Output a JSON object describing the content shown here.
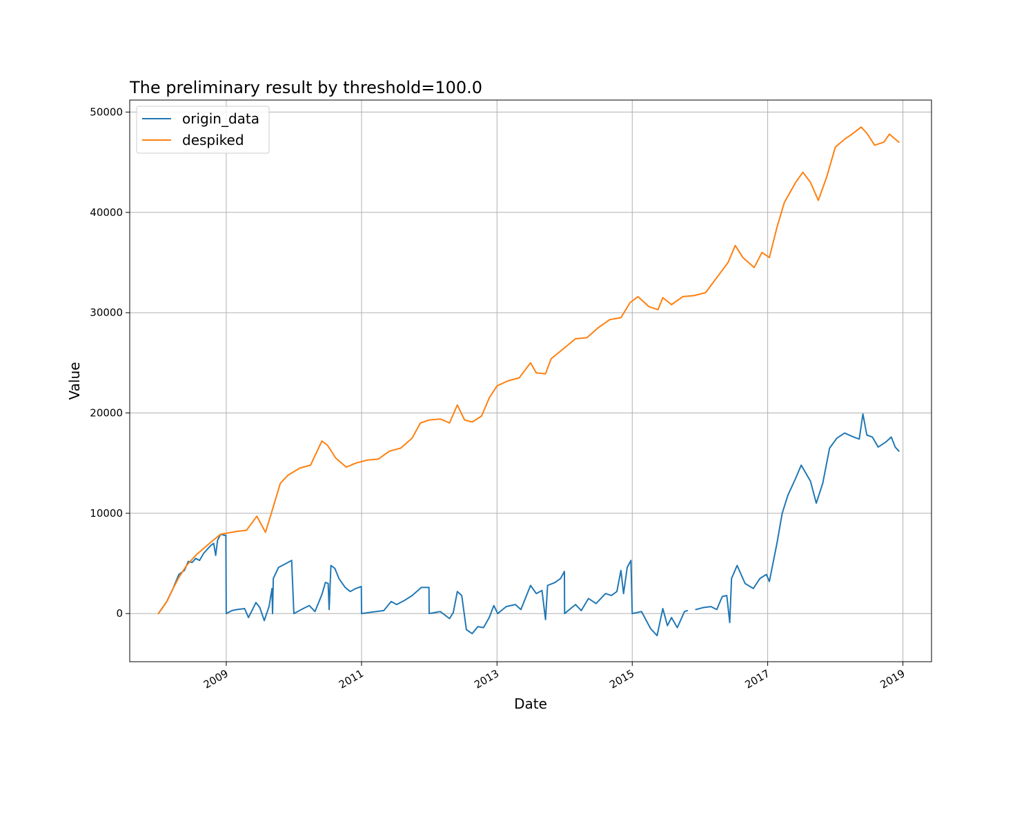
{
  "chart_data": {
    "type": "line",
    "title": "The preliminary result by threshold=100.0",
    "xlabel": "Date",
    "ylabel": "Value",
    "xlim": [
      "2007-07-30",
      "2019-06-04"
    ],
    "ylim": [
      -4800,
      51200
    ],
    "x_ticks": [
      "2009",
      "2011",
      "2013",
      "2015",
      "2017",
      "2019"
    ],
    "y_ticks": [
      0,
      10000,
      20000,
      30000,
      40000,
      50000
    ],
    "grid": true,
    "legend_position": "upper left",
    "series": [
      {
        "name": "origin_data",
        "color": "#1f77b4",
        "segments": [
          [
            [
              "2008-01-01",
              0
            ],
            [
              "2008-02-15",
              1200
            ],
            [
              "2008-03-20",
              2500
            ],
            [
              "2008-04-20",
              3900
            ],
            [
              "2008-05-20",
              4300
            ],
            [
              "2008-06-10",
              5200
            ],
            [
              "2008-07-01",
              5100
            ],
            [
              "2008-07-20",
              5500
            ],
            [
              "2008-08-10",
              5300
            ],
            [
              "2008-09-01",
              6000
            ],
            [
              "2008-09-20",
              6400
            ],
            [
              "2008-10-10",
              6800
            ],
            [
              "2008-10-25",
              7000
            ],
            [
              "2008-11-05",
              5800
            ],
            [
              "2008-11-15",
              7300
            ],
            [
              "2008-12-01",
              7900
            ],
            [
              "2008-12-25",
              7800
            ],
            [
              "2008-12-30",
              7800
            ],
            [
              "2009-01-01",
              0
            ],
            [
              "2009-02-01",
              300
            ],
            [
              "2009-03-01",
              400
            ],
            [
              "2009-04-10",
              500
            ],
            [
              "2009-05-01",
              -400
            ],
            [
              "2009-05-20",
              300
            ],
            [
              "2009-06-10",
              1100
            ],
            [
              "2009-07-01",
              600
            ],
            [
              "2009-07-25",
              -700
            ],
            [
              "2009-08-20",
              700
            ],
            [
              "2009-09-05",
              2500
            ],
            [
              "2009-09-08",
              0
            ],
            [
              "2009-09-12",
              3500
            ],
            [
              "2009-10-10",
              4600
            ],
            [
              "2009-11-10",
              4900
            ],
            [
              "2009-12-20",
              5300
            ],
            [
              "2010-01-01",
              0
            ],
            [
              "2010-02-20",
              500
            ],
            [
              "2010-03-25",
              800
            ],
            [
              "2010-04-25",
              200
            ],
            [
              "2010-06-01",
              1900
            ],
            [
              "2010-06-20",
              3100
            ],
            [
              "2010-07-05",
              3000
            ],
            [
              "2010-07-10",
              400
            ],
            [
              "2010-07-20",
              4800
            ],
            [
              "2010-08-10",
              4500
            ],
            [
              "2010-09-01",
              3500
            ],
            [
              "2010-10-05",
              2600
            ],
            [
              "2010-11-01",
              2200
            ],
            [
              "2010-12-01",
              2500
            ],
            [
              "2010-12-31",
              2700
            ],
            [
              "2011-01-01",
              0
            ],
            [
              "2011-03-01",
              150
            ],
            [
              "2011-05-01",
              300
            ],
            [
              "2011-06-10",
              1200
            ],
            [
              "2011-07-10",
              900
            ],
            [
              "2011-08-20",
              1300
            ],
            [
              "2011-10-01",
              1800
            ],
            [
              "2011-11-20",
              2600
            ],
            [
              "2011-12-31",
              2600
            ],
            [
              "2012-01-01",
              0
            ],
            [
              "2012-03-01",
              200
            ],
            [
              "2012-04-20",
              -500
            ],
            [
              "2012-05-10",
              100
            ],
            [
              "2012-06-01",
              2200
            ],
            [
              "2012-06-25",
              1800
            ],
            [
              "2012-07-20",
              -1600
            ],
            [
              "2012-08-20",
              -2000
            ],
            [
              "2012-09-20",
              -1300
            ],
            [
              "2012-10-20",
              -1400
            ],
            [
              "2012-11-20",
              -400
            ],
            [
              "2012-12-15",
              800
            ],
            [
              "2013-01-05",
              0
            ],
            [
              "2013-02-20",
              700
            ],
            [
              "2013-04-10",
              900
            ],
            [
              "2013-05-10",
              400
            ],
            [
              "2013-07-01",
              2800
            ],
            [
              "2013-08-01",
              2000
            ],
            [
              "2013-09-01",
              2300
            ],
            [
              "2013-09-20",
              -600
            ],
            [
              "2013-10-01",
              2800
            ],
            [
              "2013-11-10",
              3100
            ],
            [
              "2013-12-10",
              3500
            ],
            [
              "2013-12-31",
              4200
            ],
            [
              "2014-01-01",
              0
            ],
            [
              "2014-03-01",
              900
            ],
            [
              "2014-04-01",
              300
            ],
            [
              "2014-05-10",
              1500
            ],
            [
              "2014-06-20",
              1000
            ],
            [
              "2014-08-10",
              2000
            ],
            [
              "2014-09-10",
              1800
            ],
            [
              "2014-10-10",
              2200
            ],
            [
              "2014-11-01",
              4300
            ],
            [
              "2014-11-15",
              2000
            ],
            [
              "2014-12-05",
              4600
            ],
            [
              "2014-12-25",
              5300
            ],
            [
              "2015-01-01",
              0
            ],
            [
              "2015-02-20",
              200
            ],
            [
              "2015-04-10",
              -1500
            ],
            [
              "2015-05-15",
              -2200
            ],
            [
              "2015-06-15",
              500
            ],
            [
              "2015-07-10",
              -1200
            ],
            [
              "2015-08-01",
              -400
            ],
            [
              "2015-09-01",
              -1400
            ],
            [
              "2015-10-10",
              200
            ],
            [
              "2015-10-25",
              300
            ]
          ],
          [
            [
              "2015-12-10",
              400
            ],
            [
              "2016-01-20",
              600
            ],
            [
              "2016-03-01",
              700
            ],
            [
              "2016-04-01",
              400
            ],
            [
              "2016-05-01",
              1700
            ],
            [
              "2016-05-25",
              1800
            ],
            [
              "2016-06-10",
              -900
            ],
            [
              "2016-06-20",
              3500
            ],
            [
              "2016-07-20",
              4800
            ],
            [
              "2016-09-01",
              3000
            ],
            [
              "2016-10-15",
              2500
            ],
            [
              "2016-11-20",
              3500
            ],
            [
              "2016-12-25",
              3900
            ],
            [
              "2017-01-10",
              3200
            ],
            [
              "2017-02-20",
              7000
            ],
            [
              "2017-03-20",
              10000
            ],
            [
              "2017-04-20",
              11800
            ],
            [
              "2017-06-01",
              13500
            ],
            [
              "2017-07-01",
              14800
            ],
            [
              "2017-08-20",
              13200
            ],
            [
              "2017-09-20",
              11000
            ],
            [
              "2017-10-25",
              13000
            ],
            [
              "2017-12-01",
              16500
            ],
            [
              "2018-01-10",
              17500
            ],
            [
              "2018-02-20",
              18000
            ],
            [
              "2018-04-10",
              17600
            ],
            [
              "2018-05-10",
              17400
            ],
            [
              "2018-05-30",
              19900
            ],
            [
              "2018-06-20",
              17800
            ],
            [
              "2018-07-20",
              17600
            ],
            [
              "2018-08-20",
              16600
            ],
            [
              "2018-09-30",
              17100
            ],
            [
              "2018-10-30",
              17600
            ],
            [
              "2018-11-20",
              16600
            ],
            [
              "2018-12-10",
              16200
            ]
          ]
        ]
      },
      {
        "name": "despiked",
        "color": "#ff7f0e",
        "segments": [
          [
            [
              "2008-01-01",
              0
            ],
            [
              "2008-02-15",
              1200
            ],
            [
              "2008-03-20",
              2500
            ],
            [
              "2008-04-20",
              3600
            ],
            [
              "2008-06-01",
              4800
            ],
            [
              "2008-07-20",
              5800
            ],
            [
              "2008-09-01",
              6500
            ],
            [
              "2008-10-15",
              7200
            ],
            [
              "2008-12-01",
              7900
            ],
            [
              "2009-03-01",
              8200
            ],
            [
              "2009-04-20",
              8300
            ],
            [
              "2009-06-15",
              9700
            ],
            [
              "2009-08-01",
              8100
            ],
            [
              "2009-09-01",
              10000
            ],
            [
              "2009-10-20",
              13000
            ],
            [
              "2009-12-01",
              13800
            ],
            [
              "2010-02-01",
              14500
            ],
            [
              "2010-04-01",
              14800
            ],
            [
              "2010-06-01",
              17200
            ],
            [
              "2010-07-01",
              16800
            ],
            [
              "2010-08-15",
              15500
            ],
            [
              "2010-10-10",
              14600
            ],
            [
              "2010-12-01",
              15000
            ],
            [
              "2011-02-01",
              15300
            ],
            [
              "2011-04-01",
              15400
            ],
            [
              "2011-06-01",
              16200
            ],
            [
              "2011-08-01",
              16500
            ],
            [
              "2011-10-01",
              17500
            ],
            [
              "2011-11-15",
              19000
            ],
            [
              "2012-01-01",
              19300
            ],
            [
              "2012-03-01",
              19400
            ],
            [
              "2012-04-20",
              19000
            ],
            [
              "2012-06-01",
              20800
            ],
            [
              "2012-07-10",
              19300
            ],
            [
              "2012-08-20",
              19100
            ],
            [
              "2012-10-10",
              19700
            ],
            [
              "2012-11-20",
              21500
            ],
            [
              "2013-01-01",
              22700
            ],
            [
              "2013-03-01",
              23200
            ],
            [
              "2013-05-01",
              23500
            ],
            [
              "2013-07-01",
              25000
            ],
            [
              "2013-08-01",
              24000
            ],
            [
              "2013-09-20",
              23900
            ],
            [
              "2013-10-20",
              25400
            ],
            [
              "2014-01-01",
              26500
            ],
            [
              "2014-03-01",
              27400
            ],
            [
              "2014-05-01",
              27500
            ],
            [
              "2014-07-01",
              28500
            ],
            [
              "2014-09-01",
              29300
            ],
            [
              "2014-11-01",
              29500
            ],
            [
              "2014-12-20",
              31000
            ],
            [
              "2015-02-01",
              31600
            ],
            [
              "2015-04-01",
              30600
            ],
            [
              "2015-05-20",
              30300
            ],
            [
              "2015-06-15",
              31500
            ],
            [
              "2015-08-01",
              30800
            ],
            [
              "2015-10-01",
              31600
            ],
            [
              "2015-12-01",
              31700
            ],
            [
              "2016-02-01",
              32000
            ],
            [
              "2016-04-01",
              33500
            ],
            [
              "2016-06-01",
              35000
            ],
            [
              "2016-07-10",
              36700
            ],
            [
              "2016-08-20",
              35500
            ],
            [
              "2016-10-20",
              34500
            ],
            [
              "2016-12-01",
              36000
            ],
            [
              "2017-01-10",
              35500
            ],
            [
              "2017-02-20",
              38500
            ],
            [
              "2017-04-01",
              41000
            ],
            [
              "2017-06-01",
              43000
            ],
            [
              "2017-07-10",
              44000
            ],
            [
              "2017-08-20",
              43000
            ],
            [
              "2017-10-01",
              41200
            ],
            [
              "2017-11-15",
              43500
            ],
            [
              "2018-01-01",
              46500
            ],
            [
              "2018-02-20",
              47300
            ],
            [
              "2018-04-01",
              47800
            ],
            [
              "2018-05-20",
              48500
            ],
            [
              "2018-06-20",
              47900
            ],
            [
              "2018-08-01",
              46700
            ],
            [
              "2018-09-20",
              47000
            ],
            [
              "2018-10-20",
              47800
            ],
            [
              "2018-12-10",
              47000
            ]
          ]
        ]
      }
    ]
  }
}
